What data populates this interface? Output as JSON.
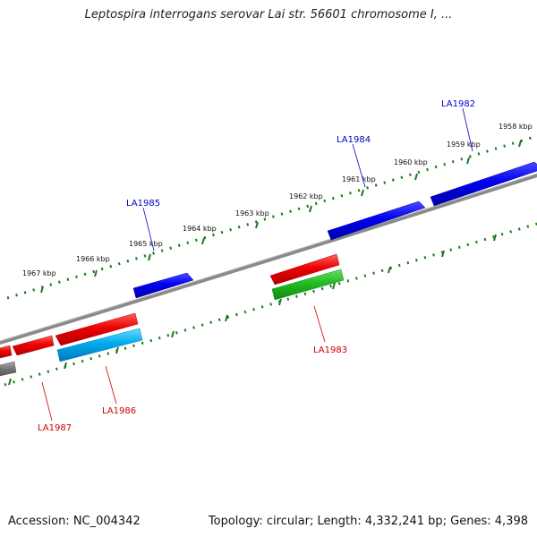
{
  "title": "Leptospira interrogans serovar Lai str. 56601 chromosome I, ...",
  "footer": {
    "accession": "Accession: NC_004342",
    "summary": "Topology: circular; Length: 4,332,241 bp; Genes: 4,398"
  },
  "kbp_labels": [
    "1958 kbp",
    "1959 kbp",
    "1960 kbp",
    "1961 kbp",
    "1962 kbp",
    "1963 kbp",
    "1964 kbp",
    "1965 kbp",
    "1966 kbp",
    "1967 kbp"
  ],
  "gene_labels": {
    "la1982": "LA1982",
    "la1983": "LA1983",
    "la1984": "LA1984",
    "la1985": "LA1985",
    "la1986": "LA1986",
    "la1987": "LA1987"
  },
  "colors": {
    "forward_gene": "#0000ee",
    "reverse_gene": "#ee0000",
    "rna_gene": "#22bb22",
    "pseudo_gene": "#00aaee",
    "backbone": "#888888",
    "tick": "#1a7a1a",
    "forward_label": "#0000cc",
    "reverse_label": "#cc0000"
  }
}
